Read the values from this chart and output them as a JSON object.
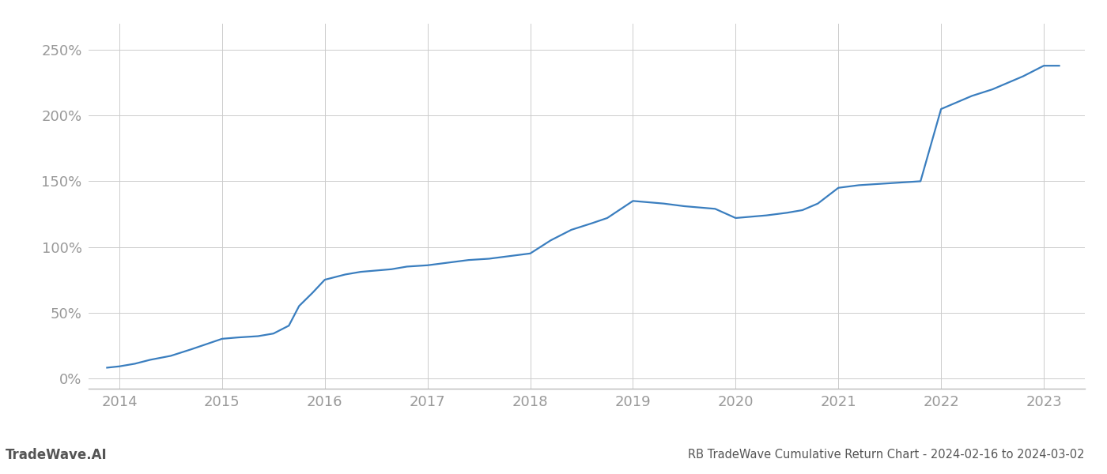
{
  "x": [
    2013.88,
    2014.0,
    2014.15,
    2014.3,
    2014.5,
    2014.7,
    2014.85,
    2015.0,
    2015.15,
    2015.35,
    2015.5,
    2015.65,
    2015.75,
    2015.88,
    2016.0,
    2016.1,
    2016.2,
    2016.35,
    2016.5,
    2016.65,
    2016.8,
    2017.0,
    2017.2,
    2017.4,
    2017.6,
    2017.8,
    2018.0,
    2018.2,
    2018.4,
    2018.6,
    2018.75,
    2019.0,
    2019.15,
    2019.3,
    2019.5,
    2019.65,
    2019.8,
    2020.0,
    2020.15,
    2020.3,
    2020.5,
    2020.65,
    2020.8,
    2021.0,
    2021.2,
    2021.4,
    2021.6,
    2021.8,
    2022.0,
    2022.15,
    2022.3,
    2022.5,
    2022.65,
    2022.8,
    2023.0,
    2023.15
  ],
  "y": [
    8,
    9,
    11,
    14,
    17,
    22,
    26,
    30,
    31,
    32,
    34,
    40,
    55,
    65,
    75,
    77,
    79,
    81,
    82,
    83,
    85,
    86,
    88,
    90,
    91,
    93,
    95,
    105,
    113,
    118,
    122,
    135,
    134,
    133,
    131,
    130,
    129,
    122,
    123,
    124,
    126,
    128,
    133,
    145,
    147,
    148,
    149,
    150,
    205,
    210,
    215,
    220,
    225,
    230,
    238,
    238
  ],
  "line_color": "#3a7ebf",
  "line_width": 1.6,
  "background_color": "#ffffff",
  "grid_color": "#cccccc",
  "title": "RB TradeWave Cumulative Return Chart - 2024-02-16 to 2024-03-02",
  "watermark": "TradeWave.AI",
  "yticks": [
    0,
    50,
    100,
    150,
    200,
    250
  ],
  "ylim": [
    -8,
    270
  ],
  "xlim": [
    2013.7,
    2023.4
  ],
  "xticks": [
    2014,
    2015,
    2016,
    2017,
    2018,
    2019,
    2020,
    2021,
    2022,
    2023
  ],
  "title_fontsize": 10.5,
  "tick_fontsize": 13,
  "watermark_fontsize": 12,
  "title_color": "#555555",
  "tick_color": "#999999",
  "watermark_color": "#555555",
  "spine_color": "#bbbbbb"
}
